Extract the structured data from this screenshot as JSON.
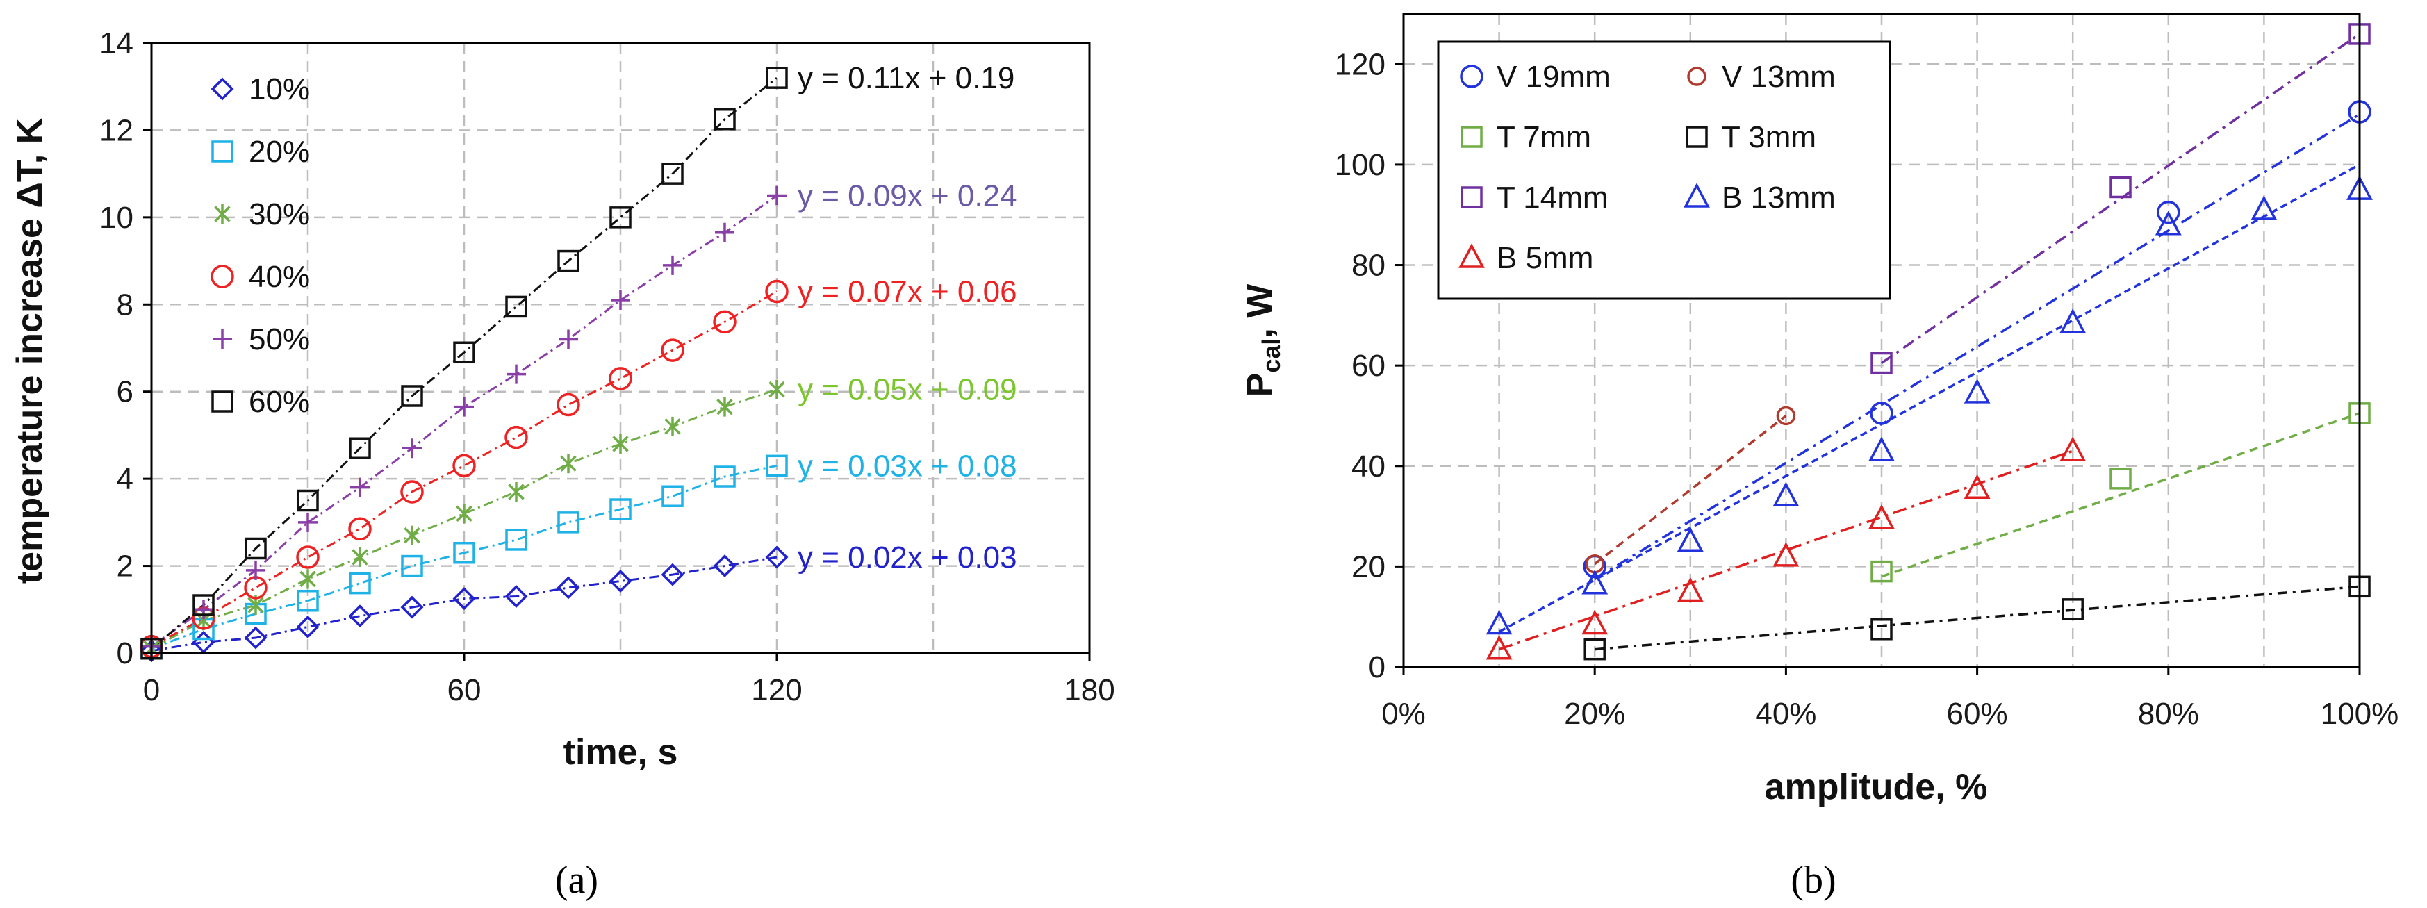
{
  "chart_data": [
    {
      "type": "scatter",
      "caption": "(a)",
      "xlabel": "time, s",
      "ylabel": "temperature increase ΔT, K",
      "xlim": [
        0,
        180
      ],
      "ylim": [
        0,
        14
      ],
      "xticks": [
        "0",
        "60",
        "120",
        "180"
      ],
      "yticks": [
        "0",
        "2",
        "4",
        "6",
        "8",
        "10",
        "12",
        "14"
      ],
      "legend_position": "top-left",
      "series": [
        {
          "name": "10%",
          "marker": "diamond",
          "color": "#2222cc",
          "trend": "y = 0.02x + 0.03",
          "trend_color": "#2222cc",
          "x": [
            0,
            10,
            20,
            30,
            40,
            50,
            60,
            70,
            80,
            90,
            100,
            110,
            120
          ],
          "y": [
            0.05,
            0.25,
            0.35,
            0.6,
            0.85,
            1.05,
            1.25,
            1.3,
            1.5,
            1.65,
            1.8,
            2.0,
            2.2
          ]
        },
        {
          "name": "20%",
          "marker": "square",
          "color": "#1fb2e6",
          "trend": "y = 0.03x + 0.08",
          "trend_color": "#1fb2e6",
          "x": [
            0,
            10,
            20,
            30,
            40,
            50,
            60,
            70,
            80,
            90,
            100,
            110,
            120
          ],
          "y": [
            0.1,
            0.55,
            0.9,
            1.2,
            1.6,
            2.0,
            2.3,
            2.6,
            3.0,
            3.3,
            3.6,
            4.05,
            4.3
          ]
        },
        {
          "name": "30%",
          "marker": "asterisk",
          "color": "#70ad47",
          "trend": "y = 0.05x + 0.09",
          "trend_color": "#7bc62d",
          "x": [
            0,
            10,
            20,
            30,
            40,
            50,
            60,
            70,
            80,
            90,
            100,
            110,
            120
          ],
          "y": [
            0.1,
            0.75,
            1.1,
            1.7,
            2.2,
            2.7,
            3.2,
            3.7,
            4.35,
            4.8,
            5.2,
            5.65,
            6.05
          ]
        },
        {
          "name": "40%",
          "marker": "circle",
          "color": "#ee2222",
          "trend": "y = 0.07x + 0.06",
          "trend_color": "#ee2222",
          "x": [
            0,
            10,
            20,
            30,
            40,
            50,
            60,
            70,
            80,
            90,
            100,
            110,
            120
          ],
          "y": [
            0.15,
            0.8,
            1.5,
            2.2,
            2.85,
            3.7,
            4.3,
            4.95,
            5.7,
            6.3,
            6.95,
            7.6,
            8.3
          ]
        },
        {
          "name": "50%",
          "marker": "plus",
          "color": "#8a3fa8",
          "trend": "y = 0.09x + 0.24",
          "trend_color": "#6b5aa6",
          "x": [
            0,
            10,
            20,
            30,
            40,
            50,
            60,
            70,
            80,
            90,
            100,
            110,
            120
          ],
          "y": [
            0.15,
            1.0,
            1.9,
            3.0,
            3.8,
            4.7,
            5.65,
            6.4,
            7.2,
            8.1,
            8.9,
            9.65,
            10.5
          ]
        },
        {
          "name": "60%",
          "marker": "square",
          "color": "#111111",
          "trend": "y = 0.11x + 0.19",
          "trend_color": "#111111",
          "x": [
            0,
            10,
            20,
            30,
            40,
            50,
            60,
            70,
            80,
            90,
            100,
            110,
            120
          ],
          "y": [
            0.1,
            1.1,
            2.4,
            3.5,
            4.7,
            5.9,
            6.9,
            7.95,
            9.0,
            10.0,
            11.0,
            12.25,
            13.2
          ]
        }
      ]
    },
    {
      "type": "scatter",
      "caption": "(b)",
      "xlabel": "amplitude, %",
      "ylabel_main": "P",
      "ylabel_sub": "cal",
      "ylabel_rest": ", W",
      "xlim": [
        0,
        100
      ],
      "ylim": [
        0,
        130
      ],
      "xticks": [
        "0%",
        "20%",
        "40%",
        "60%",
        "80%",
        "100%"
      ],
      "yticks": [
        "0",
        "20",
        "40",
        "60",
        "80",
        "100",
        "120"
      ],
      "legend_position": "top-left",
      "series": [
        {
          "name": "V 19mm",
          "marker": "circle",
          "color": "#2233dd",
          "line_color": "#2233dd",
          "fit_x": [
            20,
            100
          ],
          "fit_y": [
            17.5,
            110
          ],
          "x": [
            20,
            50,
            80,
            100
          ],
          "y": [
            20,
            50.5,
            90.5,
            110.5
          ]
        },
        {
          "name": "V 13mm",
          "marker": "circle-small",
          "color": "#b03a2e",
          "line_color": "#b03a2e",
          "fit_x": [
            20,
            40
          ],
          "fit_y": [
            20.5,
            50
          ],
          "x": [
            20,
            40
          ],
          "y": [
            20.5,
            50
          ]
        },
        {
          "name": "T 7mm",
          "marker": "square",
          "color": "#70ad47",
          "line_color": "#70ad47",
          "fit_x": [
            50,
            100
          ],
          "fit_y": [
            18,
            50.5
          ],
          "x": [
            50,
            75,
            100
          ],
          "y": [
            19,
            37.5,
            50.5
          ]
        },
        {
          "name": "T 3mm",
          "marker": "square",
          "color": "#111111",
          "line_color": "#111111",
          "fit_x": [
            20,
            100
          ],
          "fit_y": [
            3.5,
            16
          ],
          "x": [
            20,
            50,
            70,
            100
          ],
          "y": [
            3.5,
            7.5,
            11.5,
            16
          ]
        },
        {
          "name": "T 14mm",
          "marker": "square",
          "color": "#7030a0",
          "line_color": "#7030a0",
          "fit_x": [
            50,
            100
          ],
          "fit_y": [
            60.5,
            126
          ],
          "x": [
            50,
            75,
            100
          ],
          "y": [
            60.5,
            95.5,
            126
          ]
        },
        {
          "name": "B 13mm",
          "marker": "triangle",
          "color": "#2233dd",
          "line_color": "#2233dd",
          "fit_x": [
            10,
            100
          ],
          "fit_y": [
            7,
            100
          ],
          "x": [
            10,
            20,
            30,
            40,
            50,
            60,
            70,
            80,
            90,
            100
          ],
          "y": [
            8.5,
            16.5,
            25,
            34,
            43,
            54.5,
            68.5,
            88,
            91,
            95
          ]
        },
        {
          "name": "B 5mm",
          "marker": "triangle",
          "color": "#e02020",
          "line_color": "#e02020",
          "fit_x": [
            10,
            70
          ],
          "fit_y": [
            3.5,
            43
          ],
          "x": [
            10,
            20,
            30,
            40,
            50,
            60,
            70
          ],
          "y": [
            3.5,
            8.5,
            15,
            22,
            29.5,
            35.5,
            43
          ]
        }
      ]
    }
  ]
}
